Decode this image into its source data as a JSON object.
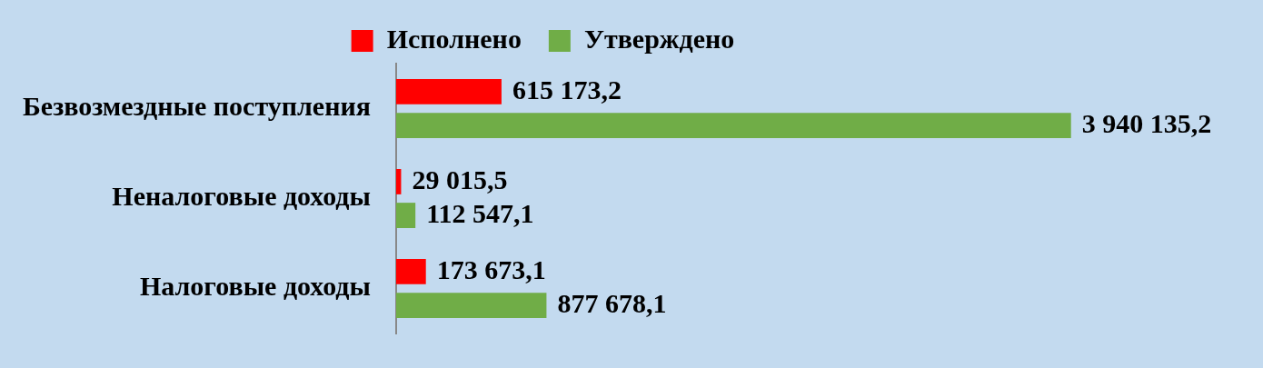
{
  "chart_data": {
    "type": "bar",
    "orientation": "horizontal",
    "categories": [
      "Безвозмездные поступления",
      "Неналоговые доходы",
      "Налоговые доходы"
    ],
    "series": [
      {
        "name": "Исполнено",
        "color": "#ff0000",
        "values": [
          615173.2,
          29015.5,
          173673.1
        ],
        "value_labels": [
          "615 173,2",
          "29 015,5",
          "173 673,1"
        ]
      },
      {
        "name": "Утверждено",
        "color": "#70ad47",
        "values": [
          3940135.2,
          112547.1,
          877678.1
        ],
        "value_labels": [
          "3 940 135,2",
          "112 547,1",
          "877 678,1"
        ]
      }
    ],
    "legend": "top"
  }
}
